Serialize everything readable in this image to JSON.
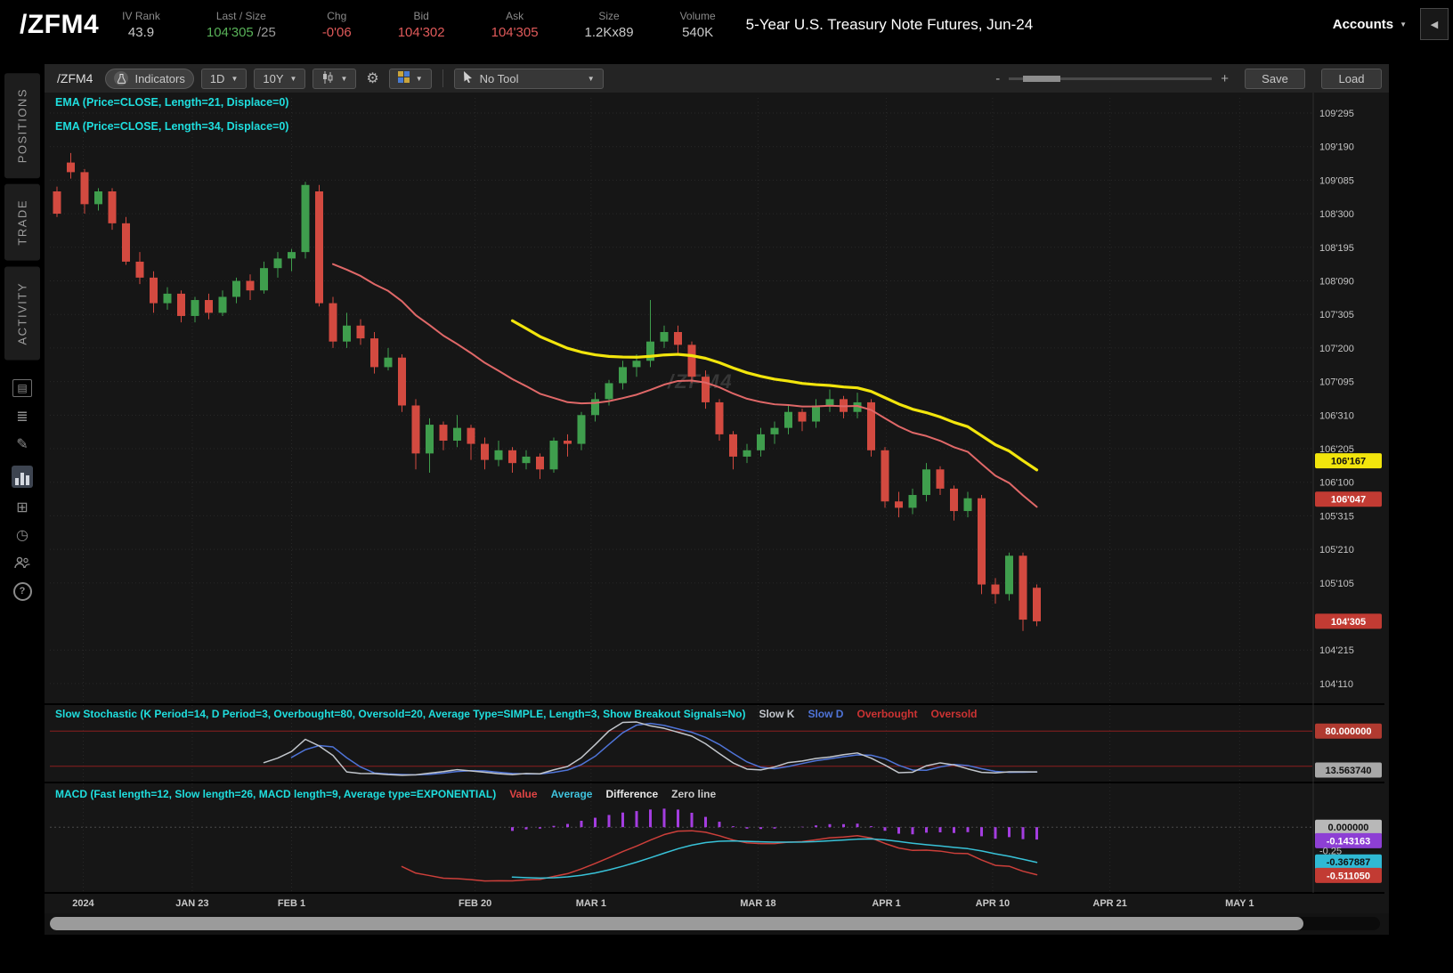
{
  "header": {
    "symbol": "/ZFM4",
    "fields": [
      {
        "label": "IV Rank",
        "value": "43.9",
        "color": "#c8c8c8"
      },
      {
        "label": "Last / Size",
        "value": "104'305",
        "suffix": " /25",
        "color": "#58b158"
      },
      {
        "label": "Chg",
        "value": "-0'06",
        "color": "#e05a5a"
      },
      {
        "label": "Bid",
        "value": "104'302",
        "color": "#e05a5a"
      },
      {
        "label": "Ask",
        "value": "104'305",
        "color": "#e05a5a"
      },
      {
        "label": "Size",
        "value": "1.2Kx89",
        "color": "#c8c8c8"
      },
      {
        "label": "Volume",
        "value": "540K",
        "color": "#c8c8c8"
      }
    ],
    "description": "5-Year U.S. Treasury Note Futures, Jun-24",
    "accounts_label": "Accounts"
  },
  "ui": {
    "caret_down": "▼",
    "collapse_left": "◀",
    "gear": "⚙"
  },
  "sidebar": {
    "tabs": [
      {
        "label": "POSITIONS"
      },
      {
        "label": "TRADE"
      },
      {
        "label": "ACTIVITY"
      }
    ],
    "icons": [
      {
        "name": "notes-icon",
        "glyph": "▤"
      },
      {
        "name": "watchlist-icon",
        "glyph": "≣"
      },
      {
        "name": "draw-icon",
        "glyph": "✎"
      },
      {
        "name": "charts-icon",
        "glyph": ""
      },
      {
        "name": "widgets-icon",
        "glyph": "⊞"
      },
      {
        "name": "history-icon",
        "glyph": "◷"
      },
      {
        "name": "users-icon",
        "glyph": ""
      },
      {
        "name": "help-icon",
        "glyph": "?"
      }
    ]
  },
  "toolbar": {
    "symbol": "/ZFM4",
    "indicators_label": "Indicators",
    "timeframe_value": "1D",
    "range_value": "10Y",
    "drawing_tool_value": "No Tool",
    "zoom_out_label": "-",
    "zoom_in_label": "+",
    "save_label": "Save",
    "load_label": "Load"
  },
  "studies": {
    "ema1": "EMA (Price=CLOSE, Length=21, Displace=0)",
    "ema2": "EMA (Price=CLOSE, Length=34, Displace=0)",
    "stoch_title": "Slow Stochastic (K Period=14, D Period=3, Overbought=80, Oversold=20, Average Type=SIMPLE, Length=3, Show Breakout Signals=No)",
    "stoch_legend": [
      {
        "label": "Slow K",
        "color": "#c2c6cc"
      },
      {
        "label": "Slow D",
        "color": "#4f74d8"
      },
      {
        "label": "Overbought",
        "color": "#cc3333"
      },
      {
        "label": "Oversold",
        "color": "#cc3333"
      }
    ],
    "macd_title": "MACD (Fast length=12, Slow length=26, MACD length=9, Average type=EXPONENTIAL)",
    "macd_legend": [
      {
        "label": "Value",
        "color": "#e04444"
      },
      {
        "label": "Average",
        "color": "#3fc3dd"
      },
      {
        "label": "Difference",
        "color": "#e8e8e8"
      },
      {
        "label": "Zero line",
        "color": "#cccccc"
      }
    ]
  },
  "colors": {
    "up": "#3f9e4d",
    "down": "#d34a40",
    "ema21": "#e06868",
    "ema34": "#f2e50c",
    "study_title": "#1fdede",
    "stoch_k": "#c2c6cc",
    "stoch_d": "#4f74d8",
    "level_line": "#8b1e1e",
    "macd_value": "#cc3f3a",
    "macd_avg": "#38c2d8",
    "macd_hist": "#a43de0",
    "grid": "#282828"
  },
  "chart_data": {
    "type": "candlestick",
    "symbol": "/ZFM4",
    "title": "5-Year U.S. Treasury Note Futures, Jun-24",
    "timeframe": "1D",
    "watermark": "/ZFM4",
    "price_axis": [
      {
        "text": "109'295",
        "v": 109.921875
      },
      {
        "text": "109'190",
        "v": 109.59375
      },
      {
        "text": "109'085",
        "v": 109.265625
      },
      {
        "text": "108'300",
        "v": 108.9375
      },
      {
        "text": "108'195",
        "v": 108.609375
      },
      {
        "text": "108'090",
        "v": 108.28125
      },
      {
        "text": "107'305",
        "v": 107.953125
      },
      {
        "text": "107'200",
        "v": 107.625
      },
      {
        "text": "107'095",
        "v": 107.296875
      },
      {
        "text": "106'310",
        "v": 106.96875
      },
      {
        "text": "106'205",
        "v": 106.640625
      },
      {
        "text": "106'100",
        "v": 106.3125
      },
      {
        "text": "105'315",
        "v": 105.984375
      },
      {
        "text": "105'210",
        "v": 105.65625
      },
      {
        "text": "105'105",
        "v": 105.328125
      },
      {
        "text": "104'215",
        "v": 104.671875
      },
      {
        "text": "104'110",
        "v": 104.34375
      }
    ],
    "x_axis": [
      {
        "label": "2024",
        "i": 1.9
      },
      {
        "label": "JAN 23",
        "i": 9.8
      },
      {
        "label": "FEB 1",
        "i": 17.0
      },
      {
        "label": "FEB 20",
        "i": 30.3
      },
      {
        "label": "MAR 1",
        "i": 38.7
      },
      {
        "label": "MAR 18",
        "i": 50.8
      },
      {
        "label": "APR 1",
        "i": 60.1
      },
      {
        "label": "APR 10",
        "i": 67.8
      },
      {
        "label": "APR 21",
        "i": 76.3
      },
      {
        "label": "MAY 1",
        "i": 85.7
      }
    ],
    "candles": [
      [
        109.156,
        109.203,
        108.906,
        108.938
      ],
      [
        109.438,
        109.531,
        109.281,
        109.344
      ],
      [
        109.344,
        109.375,
        108.938,
        109.031
      ],
      [
        109.031,
        109.188,
        108.969,
        109.156
      ],
      [
        109.156,
        109.188,
        108.781,
        108.844
      ],
      [
        108.844,
        108.906,
        108.438,
        108.469
      ],
      [
        108.469,
        108.563,
        108.25,
        108.313
      ],
      [
        108.313,
        108.375,
        107.969,
        108.063
      ],
      [
        108.063,
        108.219,
        108.0,
        108.156
      ],
      [
        108.156,
        108.188,
        107.875,
        107.938
      ],
      [
        107.938,
        108.125,
        107.875,
        108.094
      ],
      [
        108.094,
        108.156,
        107.906,
        107.969
      ],
      [
        107.969,
        108.188,
        107.938,
        108.125
      ],
      [
        108.125,
        108.313,
        108.063,
        108.281
      ],
      [
        108.281,
        108.344,
        108.094,
        108.188
      ],
      [
        108.188,
        108.469,
        108.156,
        108.406
      ],
      [
        108.406,
        108.563,
        108.313,
        108.5
      ],
      [
        108.5,
        108.594,
        108.375,
        108.563
      ],
      [
        108.563,
        109.25,
        108.5,
        109.219
      ],
      [
        109.156,
        109.219,
        108.031,
        108.063
      ],
      [
        108.063,
        108.125,
        107.625,
        107.688
      ],
      [
        107.688,
        107.969,
        107.625,
        107.844
      ],
      [
        107.844,
        107.906,
        107.656,
        107.719
      ],
      [
        107.719,
        107.781,
        107.375,
        107.438
      ],
      [
        107.438,
        107.625,
        107.406,
        107.531
      ],
      [
        107.531,
        107.563,
        107.0,
        107.063
      ],
      [
        107.063,
        107.125,
        106.438,
        106.594
      ],
      [
        106.594,
        106.938,
        106.406,
        106.875
      ],
      [
        106.875,
        106.906,
        106.625,
        106.719
      ],
      [
        106.719,
        106.969,
        106.656,
        106.844
      ],
      [
        106.844,
        106.875,
        106.531,
        106.688
      ],
      [
        106.688,
        106.75,
        106.438,
        106.531
      ],
      [
        106.531,
        106.719,
        106.469,
        106.625
      ],
      [
        106.625,
        106.656,
        106.406,
        106.5
      ],
      [
        106.5,
        106.625,
        106.438,
        106.563
      ],
      [
        106.563,
        106.594,
        106.344,
        106.438
      ],
      [
        106.438,
        106.75,
        106.406,
        106.719
      ],
      [
        106.719,
        106.781,
        106.563,
        106.688
      ],
      [
        106.688,
        107.0,
        106.625,
        106.969
      ],
      [
        106.969,
        107.188,
        106.906,
        107.125
      ],
      [
        107.125,
        107.313,
        107.063,
        107.281
      ],
      [
        107.281,
        107.5,
        107.219,
        107.438
      ],
      [
        107.438,
        107.563,
        107.344,
        107.5
      ],
      [
        107.5,
        108.094,
        107.438,
        107.688
      ],
      [
        107.688,
        107.844,
        107.625,
        107.781
      ],
      [
        107.781,
        107.844,
        107.563,
        107.656
      ],
      [
        107.656,
        107.688,
        107.281,
        107.344
      ],
      [
        107.344,
        107.406,
        107.031,
        107.094
      ],
      [
        107.094,
        107.125,
        106.719,
        106.781
      ],
      [
        106.781,
        106.813,
        106.438,
        106.563
      ],
      [
        106.563,
        106.688,
        106.5,
        106.625
      ],
      [
        106.625,
        106.844,
        106.563,
        106.781
      ],
      [
        106.781,
        106.906,
        106.688,
        106.844
      ],
      [
        106.844,
        107.063,
        106.781,
        107.0
      ],
      [
        107.0,
        107.031,
        106.813,
        106.906
      ],
      [
        106.906,
        107.125,
        106.844,
        107.063
      ],
      [
        107.063,
        107.219,
        107.0,
        107.125
      ],
      [
        107.125,
        107.156,
        106.938,
        107.0
      ],
      [
        107.0,
        107.188,
        106.938,
        107.094
      ],
      [
        107.094,
        107.125,
        106.563,
        106.625
      ],
      [
        106.625,
        106.656,
        106.063,
        106.125
      ],
      [
        106.125,
        106.219,
        105.969,
        106.063
      ],
      [
        106.063,
        106.25,
        106.0,
        106.188
      ],
      [
        106.188,
        106.5,
        106.125,
        106.438
      ],
      [
        106.438,
        106.469,
        106.188,
        106.25
      ],
      [
        106.25,
        106.281,
        105.938,
        106.031
      ],
      [
        106.031,
        106.219,
        105.969,
        106.156
      ],
      [
        106.156,
        106.188,
        105.219,
        105.313
      ],
      [
        105.313,
        105.375,
        105.125,
        105.219
      ],
      [
        105.219,
        105.625,
        105.156,
        105.594
      ],
      [
        105.594,
        105.625,
        104.859,
        104.969
      ],
      [
        105.281,
        105.313,
        104.906,
        104.953
      ]
    ],
    "overlays": [
      {
        "name": "EMA(21)",
        "period": 21,
        "color": "#e06868"
      },
      {
        "name": "EMA(34)",
        "period": 34,
        "color": "#f2e50c"
      }
    ],
    "price_badges": [
      {
        "text": "106'167",
        "value": 106.521875,
        "bg": "#f2e50c",
        "fg": "#111111"
      },
      {
        "text": "106'047",
        "value": 106.146875,
        "bg": "#c23b33",
        "fg": "#ffffff"
      },
      {
        "text": "104'305",
        "value": 104.953125,
        "bg": "#c23b33",
        "fg": "#ffffff"
      }
    ],
    "stoch": {
      "k_period": 14,
      "d_period": 3,
      "overbought": 80,
      "oversold": 20,
      "badges": [
        {
          "text": "80.000000",
          "value": 80,
          "bg": "#b03a30",
          "fg": "#ffffff"
        },
        {
          "text": "13.563740",
          "value": 13.56374,
          "bg": "#a8a8a8",
          "fg": "#111111"
        }
      ]
    },
    "macd": {
      "fast": 12,
      "slow": 26,
      "signal": 9,
      "badges": [
        {
          "text": "0.000000",
          "value": 0,
          "bg": "#b8b8b8",
          "fg": "#111111"
        },
        {
          "text": "-0.143163",
          "value": -0.143163,
          "bg": "#8d3fd4",
          "fg": "#ffffff"
        },
        {
          "text": "-0.25",
          "value": -0.25,
          "bg": "none",
          "fg": "#9a9a9a"
        },
        {
          "text": "-0.367887",
          "value": -0.367887,
          "bg": "#2fb9d4",
          "fg": "#111111"
        },
        {
          "text": "-0.511050",
          "value": -0.51105,
          "bg": "#c23b33",
          "fg": "#ffffff"
        }
      ]
    }
  }
}
